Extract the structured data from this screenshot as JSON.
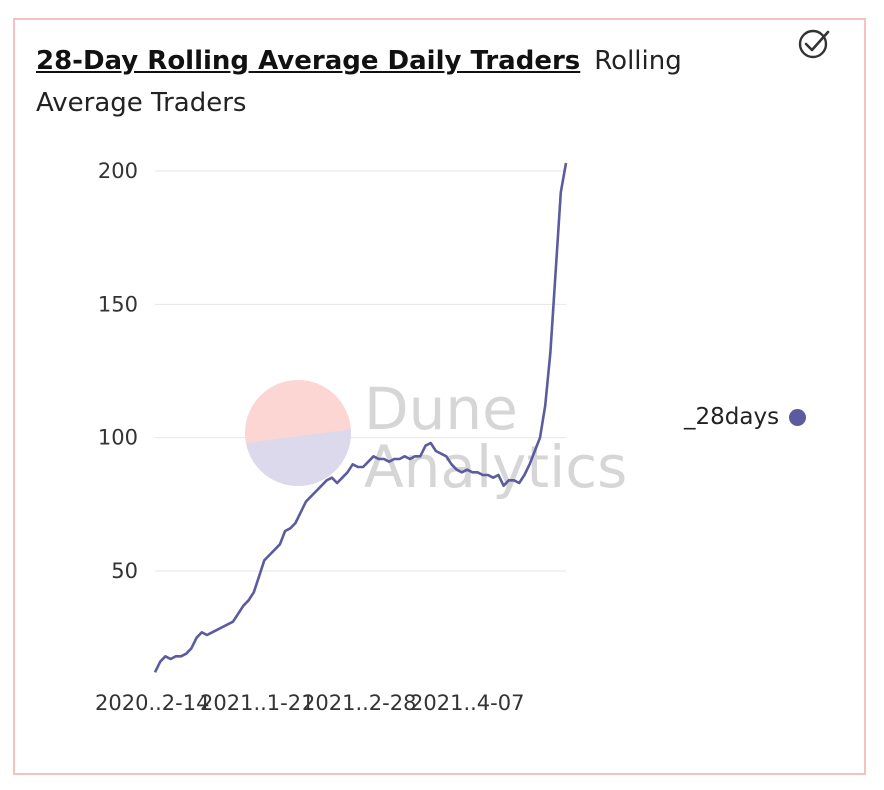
{
  "header": {
    "title": "28-Day Rolling Average Daily Traders",
    "subtitle": "Rolling Average Traders"
  },
  "watermark": {
    "line1": "Dune",
    "line2": "Analytics"
  },
  "colors": {
    "series": "#5b5b9e",
    "grid": "#e6e6e6",
    "border": "#f4c2c0"
  },
  "icons": {
    "status": "check-circle-icon"
  },
  "chart_data": {
    "type": "line",
    "title": "28-Day Rolling Average Daily Traders",
    "subtitle": "Rolling Average Traders",
    "xlabel": "",
    "ylabel": "",
    "ylim": [
      5,
      205
    ],
    "yticks": [
      50,
      100,
      150,
      200
    ],
    "xtick_labels": [
      "2020..2-14",
      "2021..1-21",
      "2021..2-28",
      "2021..4-07"
    ],
    "grid": true,
    "legend_position": "right",
    "series": [
      {
        "name": "_28days",
        "values": [
          12,
          16,
          18,
          17,
          18,
          18,
          19,
          21,
          25,
          27,
          26,
          27,
          28,
          29,
          30,
          31,
          34,
          37,
          39,
          42,
          48,
          54,
          56,
          58,
          60,
          65,
          66,
          68,
          72,
          76,
          78,
          80,
          82,
          84,
          85,
          83,
          85,
          87,
          90,
          89,
          89,
          91,
          93,
          92,
          92,
          91,
          92,
          92,
          93,
          92,
          93,
          93,
          97,
          98,
          95,
          94,
          93,
          90,
          88,
          87,
          88,
          87,
          87,
          86,
          86,
          85,
          86,
          82,
          84,
          84,
          83,
          86,
          90,
          95,
          100,
          112,
          132,
          162,
          192,
          203
        ]
      }
    ]
  },
  "legend": {
    "label": "_28days"
  }
}
